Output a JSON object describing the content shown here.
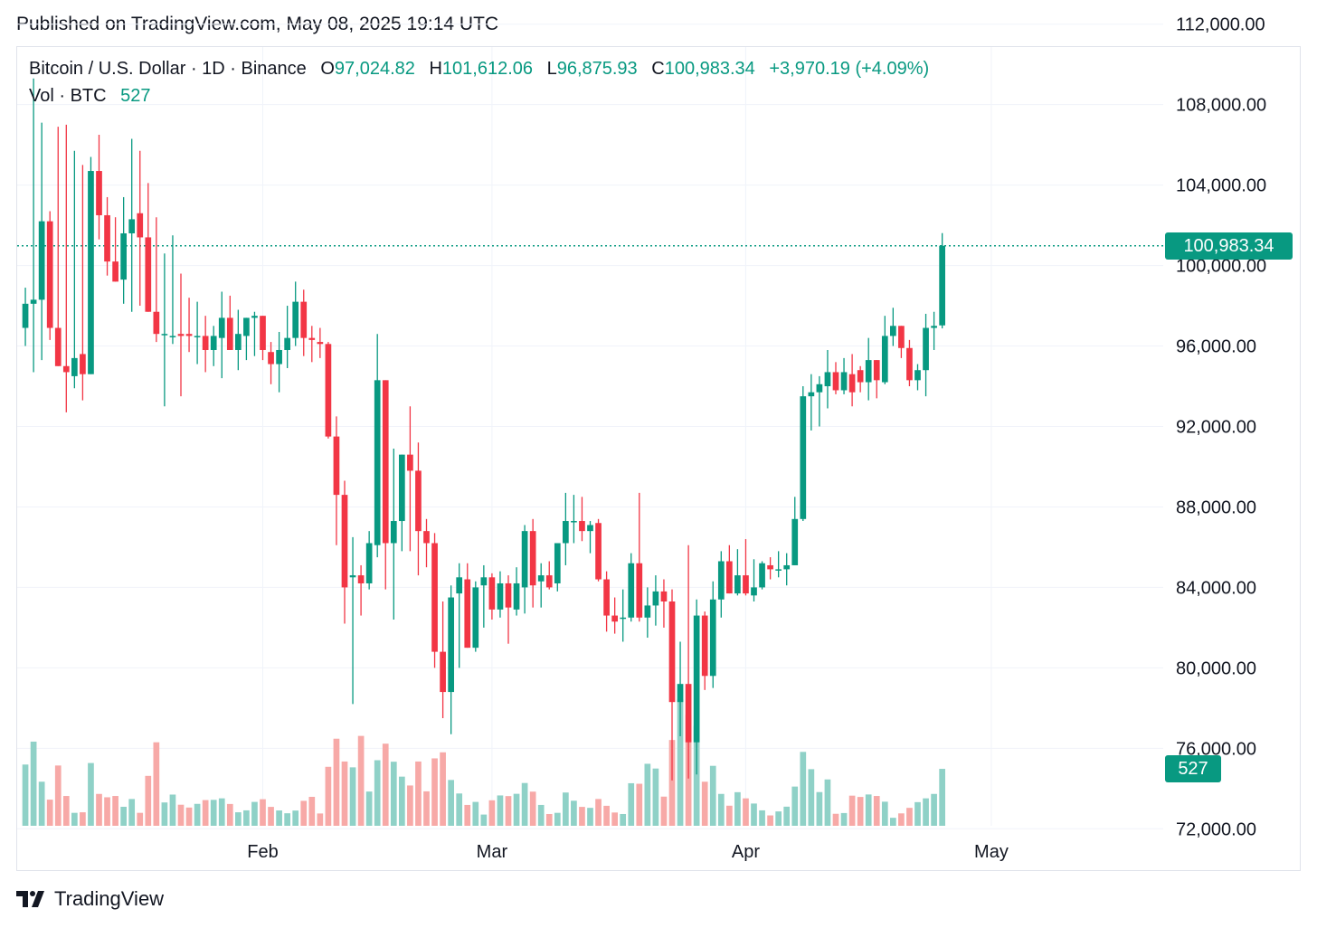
{
  "header": {
    "published": "Published on TradingView.com, May 08, 2025 19:14 UTC"
  },
  "legend": {
    "symbol": "Bitcoin / U.S. Dollar · 1D · Binance",
    "o_label": "O",
    "open": "97,024.82",
    "h_label": "H",
    "high": "101,612.06",
    "l_label": "L",
    "low": "96,875.93",
    "c_label": "C",
    "close": "100,983.34",
    "change": "+3,970.19 (+4.09%)",
    "vol_label": "Vol · BTC",
    "vol_value": "527"
  },
  "price_tag": "100,983.34",
  "volume_tag": "527",
  "footer": {
    "brand": "TradingView"
  },
  "colors": {
    "up": "#089981",
    "down": "#f23645",
    "up_volume": "#8fd1c7",
    "down_volume": "#f7a9a7",
    "grid": "#f0f3fa",
    "last_price": "#089981"
  },
  "chart_data": {
    "type": "candlestick",
    "title": "Bitcoin / U.S. Dollar · 1D · Binance",
    "y_ticks": [
      72000,
      76000,
      80000,
      84000,
      88000,
      92000,
      96000,
      100000,
      104000,
      108000,
      112000
    ],
    "y_tick_labels": [
      "72,000.00",
      "76,000.00",
      "80,000.00",
      "84,000.00",
      "88,000.00",
      "92,000.00",
      "96,000.00",
      "100,000.00",
      "104,000.00",
      "108,000.00",
      "112,000.00"
    ],
    "ylim": [
      70800,
      113200
    ],
    "x_ticks": [
      {
        "label": "Feb",
        "date": "2025-02-01"
      },
      {
        "label": "Mar",
        "date": "2025-03-01"
      },
      {
        "label": "Apr",
        "date": "2025-04-01"
      },
      {
        "label": "May",
        "date": "2025-05-01"
      }
    ],
    "x_range": [
      "2025-01-02",
      "2025-05-22"
    ],
    "last_price": 100983.34,
    "grid": true,
    "series": [
      {
        "start_date": "2025-01-03",
        "values": [
          {
            "o": 96900,
            "h": 98900,
            "l": 96000,
            "c": 98100,
            "v": 567
          },
          {
            "o": 98100,
            "h": 109300,
            "l": 94700,
            "c": 98300,
            "v": 779
          },
          {
            "o": 98300,
            "h": 107100,
            "l": 95300,
            "c": 102200,
            "v": 408
          },
          {
            "o": 102200,
            "h": 102700,
            "l": 96300,
            "c": 96900,
            "v": 242
          },
          {
            "o": 96900,
            "h": 106900,
            "l": 96100,
            "c": 95000,
            "v": 558
          },
          {
            "o": 95000,
            "h": 107000,
            "l": 92700,
            "c": 94700,
            "v": 276
          },
          {
            "o": 94500,
            "h": 105700,
            "l": 93900,
            "c": 95400,
            "v": 120
          },
          {
            "o": 95600,
            "h": 105000,
            "l": 93300,
            "c": 94600,
            "v": 125
          },
          {
            "o": 94600,
            "h": 105400,
            "l": 97300,
            "c": 104700,
            "v": 581
          },
          {
            "o": 104700,
            "h": 106500,
            "l": 101300,
            "c": 102500,
            "v": 295
          },
          {
            "o": 102500,
            "h": 103400,
            "l": 99500,
            "c": 100200,
            "v": 264
          },
          {
            "o": 100200,
            "h": 102400,
            "l": 99200,
            "c": 99200,
            "v": 276
          },
          {
            "o": 99300,
            "h": 103400,
            "l": 98100,
            "c": 101600,
            "v": 176
          },
          {
            "o": 101600,
            "h": 106300,
            "l": 97700,
            "c": 102300,
            "v": 248
          },
          {
            "o": 102600,
            "h": 105700,
            "l": 98000,
            "c": 101400,
            "v": 120
          },
          {
            "o": 101400,
            "h": 104100,
            "l": 98500,
            "c": 97700,
            "v": 462
          },
          {
            "o": 97700,
            "h": 102400,
            "l": 96200,
            "c": 96600,
            "v": 773
          },
          {
            "o": 96600,
            "h": 100600,
            "l": 93000,
            "c": 96600,
            "v": 216
          },
          {
            "o": 96500,
            "h": 101500,
            "l": 96100,
            "c": 96500,
            "v": 289
          },
          {
            "o": 96600,
            "h": 99600,
            "l": 93500,
            "c": 96500,
            "v": 195
          },
          {
            "o": 96600,
            "h": 98400,
            "l": 95700,
            "c": 96500,
            "v": 169
          },
          {
            "o": 96500,
            "h": 98200,
            "l": 95100,
            "c": 96500,
            "v": 203
          },
          {
            "o": 96500,
            "h": 97500,
            "l": 94700,
            "c": 95800,
            "v": 238
          },
          {
            "o": 95800,
            "h": 97000,
            "l": 95000,
            "c": 96500,
            "v": 240
          },
          {
            "o": 96400,
            "h": 98700,
            "l": 94400,
            "c": 97400,
            "v": 254
          },
          {
            "o": 97400,
            "h": 98500,
            "l": 96300,
            "c": 95800,
            "v": 202
          },
          {
            "o": 95800,
            "h": 97800,
            "l": 94800,
            "c": 96600,
            "v": 125
          },
          {
            "o": 96500,
            "h": 97400,
            "l": 95300,
            "c": 97400,
            "v": 143
          },
          {
            "o": 97400,
            "h": 97700,
            "l": 95500,
            "c": 97500,
            "v": 221
          },
          {
            "o": 97500,
            "h": 96600,
            "l": 95300,
            "c": 95800,
            "v": 246
          },
          {
            "o": 95700,
            "h": 96200,
            "l": 94100,
            "c": 95100,
            "v": 175
          },
          {
            "o": 95100,
            "h": 96700,
            "l": 93700,
            "c": 95800,
            "v": 142
          },
          {
            "o": 95800,
            "h": 98000,
            "l": 94900,
            "c": 96400,
            "v": 116
          },
          {
            "o": 96400,
            "h": 99200,
            "l": 96000,
            "c": 98200,
            "v": 141
          },
          {
            "o": 98200,
            "h": 98800,
            "l": 95500,
            "c": 96400,
            "v": 231
          },
          {
            "o": 96400,
            "h": 97000,
            "l": 95200,
            "c": 96300,
            "v": 268
          },
          {
            "o": 96200,
            "h": 96900,
            "l": 95400,
            "c": 96100,
            "v": 114
          },
          {
            "o": 96100,
            "h": 96200,
            "l": 91400,
            "c": 91500,
            "v": 546
          },
          {
            "o": 91500,
            "h": 92500,
            "l": 86100,
            "c": 88600,
            "v": 806
          },
          {
            "o": 88600,
            "h": 89300,
            "l": 82200,
            "c": 84000,
            "v": 595
          },
          {
            "o": 84500,
            "h": 86500,
            "l": 78200,
            "c": 84600,
            "v": 541
          },
          {
            "o": 84600,
            "h": 85100,
            "l": 82600,
            "c": 84200,
            "v": 832
          },
          {
            "o": 84200,
            "h": 86800,
            "l": 83900,
            "c": 86200,
            "v": 317
          },
          {
            "o": 86100,
            "h": 96600,
            "l": 85500,
            "c": 94300,
            "v": 607
          },
          {
            "o": 94300,
            "h": 94200,
            "l": 83900,
            "c": 86200,
            "v": 760
          },
          {
            "o": 86200,
            "h": 90900,
            "l": 82400,
            "c": 87300,
            "v": 593
          },
          {
            "o": 87300,
            "h": 90100,
            "l": 85800,
            "c": 90600,
            "v": 455
          },
          {
            "o": 90600,
            "h": 93000,
            "l": 85800,
            "c": 89800,
            "v": 373
          },
          {
            "o": 89800,
            "h": 91200,
            "l": 84600,
            "c": 86800,
            "v": 595
          },
          {
            "o": 86800,
            "h": 87400,
            "l": 85000,
            "c": 86200,
            "v": 319
          },
          {
            "o": 86200,
            "h": 86700,
            "l": 80000,
            "c": 80800,
            "v": 624
          },
          {
            "o": 80800,
            "h": 83300,
            "l": 77500,
            "c": 78800,
            "v": 680
          },
          {
            "o": 78800,
            "h": 84100,
            "l": 76700,
            "c": 83500,
            "v": 424
          },
          {
            "o": 83700,
            "h": 85200,
            "l": 80000,
            "c": 84500,
            "v": 299
          },
          {
            "o": 84400,
            "h": 85200,
            "l": 81600,
            "c": 81000,
            "v": 193
          },
          {
            "o": 81000,
            "h": 84300,
            "l": 80800,
            "c": 84000,
            "v": 221
          },
          {
            "o": 84100,
            "h": 85100,
            "l": 82000,
            "c": 84500,
            "v": 104
          },
          {
            "o": 84500,
            "h": 84700,
            "l": 82400,
            "c": 82900,
            "v": 236
          },
          {
            "o": 82900,
            "h": 84800,
            "l": 82500,
            "c": 84200,
            "v": 281
          },
          {
            "o": 84200,
            "h": 84600,
            "l": 81200,
            "c": 83000,
            "v": 275
          },
          {
            "o": 82900,
            "h": 85000,
            "l": 82600,
            "c": 84200,
            "v": 296
          },
          {
            "o": 84000,
            "h": 87100,
            "l": 82700,
            "c": 86800,
            "v": 396
          },
          {
            "o": 86800,
            "h": 87400,
            "l": 83000,
            "c": 84100,
            "v": 316
          },
          {
            "o": 84300,
            "h": 85200,
            "l": 83000,
            "c": 84600,
            "v": 193
          },
          {
            "o": 84600,
            "h": 85300,
            "l": 83900,
            "c": 84000,
            "v": 109
          },
          {
            "o": 84200,
            "h": 85300,
            "l": 83800,
            "c": 86200,
            "v": 120
          },
          {
            "o": 86200,
            "h": 88700,
            "l": 85100,
            "c": 87300,
            "v": 308
          },
          {
            "o": 87300,
            "h": 88600,
            "l": 86200,
            "c": 87300,
            "v": 232
          },
          {
            "o": 87300,
            "h": 88500,
            "l": 86300,
            "c": 86800,
            "v": 175
          },
          {
            "o": 86800,
            "h": 87300,
            "l": 85700,
            "c": 87100,
            "v": 166
          },
          {
            "o": 87200,
            "h": 87400,
            "l": 84300,
            "c": 84400,
            "v": 248
          },
          {
            "o": 84400,
            "h": 84800,
            "l": 81800,
            "c": 82600,
            "v": 185
          },
          {
            "o": 82600,
            "h": 83500,
            "l": 81700,
            "c": 82300,
            "v": 123
          },
          {
            "o": 82500,
            "h": 83900,
            "l": 81300,
            "c": 82500,
            "v": 109
          },
          {
            "o": 82500,
            "h": 85700,
            "l": 82300,
            "c": 85200,
            "v": 394
          },
          {
            "o": 85200,
            "h": 88700,
            "l": 82300,
            "c": 82500,
            "v": 389
          },
          {
            "o": 82500,
            "h": 84000,
            "l": 81500,
            "c": 83100,
            "v": 574
          },
          {
            "o": 83100,
            "h": 84600,
            "l": 82100,
            "c": 83800,
            "v": 530
          },
          {
            "o": 83800,
            "h": 84400,
            "l": 82000,
            "c": 83300,
            "v": 270
          },
          {
            "o": 83300,
            "h": 83900,
            "l": 74400,
            "c": 78300,
            "v": 794
          },
          {
            "o": 78300,
            "h": 81300,
            "l": 76600,
            "c": 79200,
            "v": 1172
          },
          {
            "o": 79200,
            "h": 86100,
            "l": 74500,
            "c": 76300,
            "v": 1026
          },
          {
            "o": 76300,
            "h": 83400,
            "l": 74700,
            "c": 82600,
            "v": 926
          },
          {
            "o": 82600,
            "h": 82800,
            "l": 78900,
            "c": 79600,
            "v": 408
          },
          {
            "o": 79600,
            "h": 84300,
            "l": 79000,
            "c": 83400,
            "v": 555
          },
          {
            "o": 83400,
            "h": 85800,
            "l": 82500,
            "c": 85300,
            "v": 295
          },
          {
            "o": 85300,
            "h": 86100,
            "l": 83700,
            "c": 83700,
            "v": 186
          },
          {
            "o": 83700,
            "h": 85900,
            "l": 83600,
            "c": 84600,
            "v": 311
          },
          {
            "o": 84600,
            "h": 86400,
            "l": 83600,
            "c": 83700,
            "v": 254
          },
          {
            "o": 83600,
            "h": 85400,
            "l": 83300,
            "c": 84000,
            "v": 206
          },
          {
            "o": 84000,
            "h": 85300,
            "l": 83900,
            "c": 85200,
            "v": 143
          },
          {
            "o": 85100,
            "h": 85500,
            "l": 84400,
            "c": 84900,
            "v": 96
          },
          {
            "o": 84900,
            "h": 85800,
            "l": 84500,
            "c": 84900,
            "v": 133
          },
          {
            "o": 84900,
            "h": 85700,
            "l": 84100,
            "c": 85100,
            "v": 177
          },
          {
            "o": 85100,
            "h": 88500,
            "l": 85100,
            "c": 87400,
            "v": 363
          },
          {
            "o": 87400,
            "h": 94000,
            "l": 87300,
            "c": 93500,
            "v": 684
          },
          {
            "o": 93500,
            "h": 94600,
            "l": 91800,
            "c": 93700,
            "v": 524
          },
          {
            "o": 93700,
            "h": 94500,
            "l": 92000,
            "c": 94100,
            "v": 312
          },
          {
            "o": 94000,
            "h": 95800,
            "l": 92900,
            "c": 94700,
            "v": 429
          },
          {
            "o": 94700,
            "h": 95200,
            "l": 93600,
            "c": 93800,
            "v": 111
          },
          {
            "o": 93800,
            "h": 95400,
            "l": 93600,
            "c": 94700,
            "v": 118
          },
          {
            "o": 94600,
            "h": 95600,
            "l": 93000,
            "c": 93700,
            "v": 279
          },
          {
            "o": 94800,
            "h": 95000,
            "l": 93700,
            "c": 94200,
            "v": 267
          },
          {
            "o": 94200,
            "h": 96400,
            "l": 93300,
            "c": 95300,
            "v": 290
          },
          {
            "o": 95300,
            "h": 95200,
            "l": 93400,
            "c": 94300,
            "v": 276
          },
          {
            "o": 94200,
            "h": 97500,
            "l": 94100,
            "c": 96500,
            "v": 223
          },
          {
            "o": 96500,
            "h": 97900,
            "l": 96000,
            "c": 97000,
            "v": 74
          },
          {
            "o": 97000,
            "h": 96900,
            "l": 95400,
            "c": 95900,
            "v": 115
          },
          {
            "o": 95900,
            "h": 96300,
            "l": 94000,
            "c": 94300,
            "v": 166
          },
          {
            "o": 94300,
            "h": 95100,
            "l": 93800,
            "c": 94800,
            "v": 219
          },
          {
            "o": 94800,
            "h": 97600,
            "l": 93500,
            "c": 96900,
            "v": 254
          },
          {
            "o": 96900,
            "h": 97700,
            "l": 95800,
            "c": 97000,
            "v": 295
          },
          {
            "o": 97024.82,
            "h": 101612.06,
            "l": 96875.93,
            "c": 100983.34,
            "v": 527
          }
        ]
      }
    ]
  }
}
